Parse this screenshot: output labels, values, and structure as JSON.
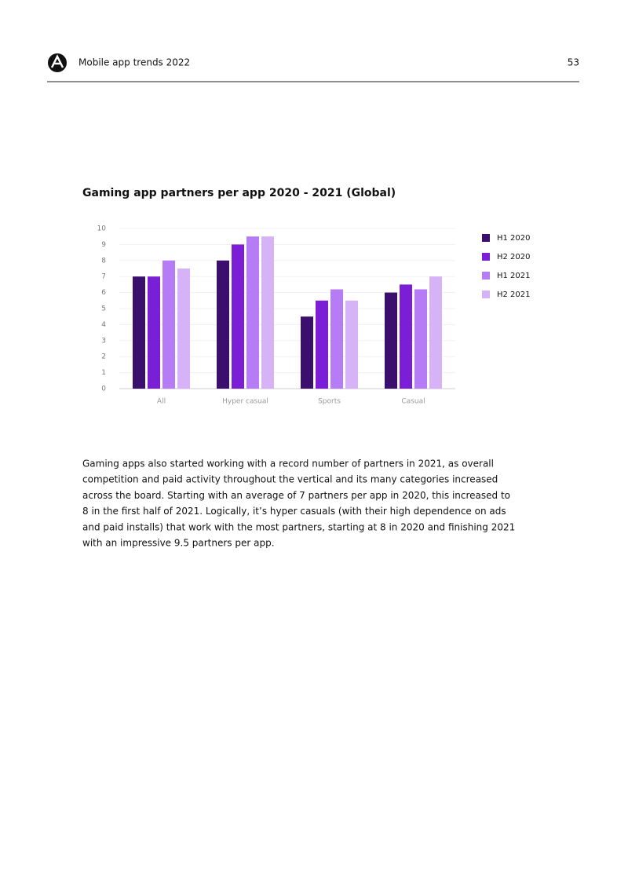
{
  "header": {
    "title": "Mobile app trends 2022",
    "page": "53"
  },
  "chart_data": {
    "type": "bar",
    "title": "Gaming app partners per app 2020 - 2021 (Global)",
    "categories": [
      "All",
      "Hyper casual",
      "Sports",
      "Casual"
    ],
    "series": [
      {
        "name": "H1 2020",
        "color": "#3b0f6e",
        "values": [
          7,
          8,
          4.5,
          6
        ]
      },
      {
        "name": "H2 2020",
        "color": "#7a1fd6",
        "values": [
          7,
          9,
          5.5,
          6.5
        ]
      },
      {
        "name": "H1 2021",
        "color": "#b57cf5",
        "values": [
          8,
          9.5,
          6.2,
          6.2
        ]
      },
      {
        "name": "H2 2021",
        "color": "#d6b2f7",
        "values": [
          7.5,
          9.5,
          5.5,
          7
        ]
      }
    ],
    "ylim": [
      0,
      10
    ],
    "yticks": [
      0,
      1,
      2,
      3,
      4,
      5,
      6,
      7,
      8,
      9,
      10
    ],
    "grid": true,
    "legend": "right"
  },
  "body": {
    "lines": [
      "Gaming apps also started working with a record number of partners in 2021, as overall",
      "competition and paid activity throughout the vertical and its many categories increased",
      "across the board. Starting with an average of 7 partners per app in 2020, this increased to",
      "8 in the first half of 2021. Logically, it’s hyper casuals (with their high dependence on ads",
      "and paid installs) that work with the most partners, starting at 8 in 2020 and finishing 2021",
      "with an impressive 9.5 partners per app."
    ]
  }
}
